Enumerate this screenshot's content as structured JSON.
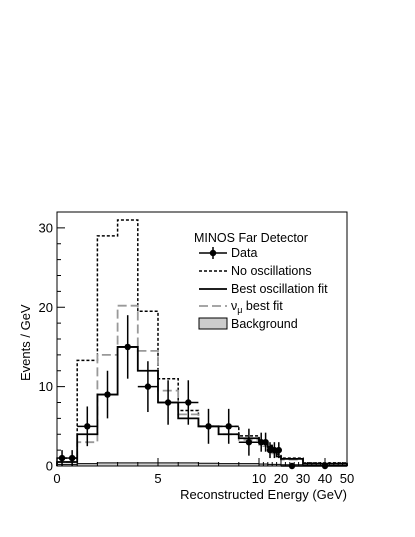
{
  "chart_data": {
    "type": "line",
    "xlabel": "Reconstructed Energy (GeV)",
    "ylabel": "Events / GeV",
    "ylim": [
      0,
      32
    ],
    "x_bin_edges": [
      0,
      0.5,
      1,
      1.5,
      2,
      2.5,
      3,
      3.5,
      4,
      4.5,
      5,
      5.5,
      6,
      6.5,
      7,
      7.5,
      8,
      8.5,
      9,
      9.5,
      10,
      12,
      14,
      16,
      18,
      20,
      30,
      50
    ],
    "x_ticks": [
      "0",
      "5",
      "10",
      "20",
      "30",
      "40",
      "50"
    ],
    "y_ticks": [
      "0",
      "10",
      "20",
      "30"
    ],
    "legend_title": "MINOS Far Detector",
    "legend_position": "top-right",
    "series": [
      {
        "name": "Data",
        "style": "points with error bars",
        "color": "#000000",
        "x": [
          0.25,
          0.75,
          1.5,
          2.5,
          3.5,
          4.5,
          5.5,
          6.5,
          7.5,
          8.5,
          9.5,
          11,
          13,
          15,
          17,
          19,
          25,
          40
        ],
        "values": [
          1,
          1,
          5,
          9,
          15,
          10,
          8,
          8,
          5,
          5,
          3,
          3,
          3,
          2,
          2,
          2,
          0,
          0
        ],
        "errors": [
          1,
          1,
          2.5,
          3,
          4,
          3.2,
          2.8,
          2.8,
          2.2,
          2.2,
          1.7,
          1.2,
          1.2,
          1,
          1,
          1,
          0.05,
          0.03
        ]
      },
      {
        "name": "No oscillations",
        "style": "dotted histogram",
        "color": "#000000",
        "values": [
          1,
          1,
          13.3,
          13.3,
          29,
          29,
          31,
          31,
          19.5,
          19.5,
          11,
          11,
          7,
          7,
          5,
          5,
          5,
          5,
          3.8,
          3.8,
          3.2,
          3,
          2.6,
          2.2,
          1.5,
          1,
          0.4
        ]
      },
      {
        "name": "Best oscillation fit",
        "style": "solid histogram",
        "color": "#000000",
        "values": [
          0.5,
          0.5,
          4,
          4,
          9,
          9,
          15,
          15,
          12,
          12,
          8,
          8,
          6,
          6,
          5,
          5,
          4,
          4,
          3.5,
          3.5,
          3,
          2.8,
          2.4,
          1.8,
          1.2,
          0.9,
          0.3
        ]
      },
      {
        "name": "best fit",
        "label_symbol": "ν",
        "label_subscript": "μ",
        "style": "dashed histogram",
        "color": "#999999",
        "values": [
          0.5,
          0.5,
          3,
          3,
          14,
          14,
          20.2,
          20.2,
          14.5,
          14.5,
          9.5,
          9.5,
          6.5,
          6.5,
          5,
          5,
          4,
          4,
          3.3,
          3.3,
          2.7,
          2.5,
          2.1,
          1.6,
          1.1,
          0.8,
          0.3
        ]
      },
      {
        "name": "Background",
        "style": "filled histogram",
        "color": "#cccccc",
        "values": [
          0.2,
          0.2,
          0.3,
          0.3,
          0.4,
          0.4,
          0.4,
          0.4,
          0.4,
          0.4,
          0.4,
          0.4,
          0.4,
          0.4,
          0.35,
          0.35,
          0.3,
          0.3,
          0.3,
          0.3,
          0.25,
          0.25,
          0.2,
          0.2,
          0.2,
          0.15,
          0.1
        ]
      }
    ]
  }
}
